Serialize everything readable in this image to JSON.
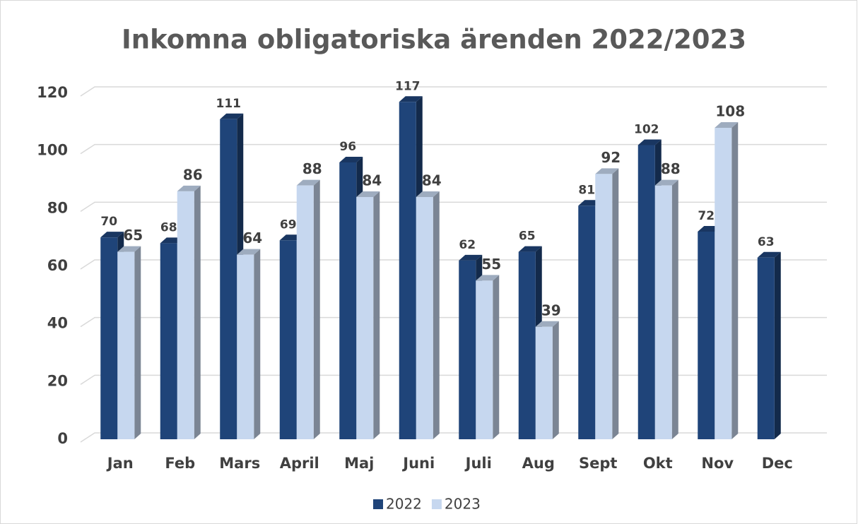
{
  "chart_data": {
    "type": "bar3d",
    "title": "Inkomna obligatoriska ärenden 2022/2023",
    "categories": [
      "Jan",
      "Feb",
      "Mars",
      "April",
      "Maj",
      "Juni",
      "Juli",
      "Aug",
      "Sept",
      "Okt",
      "Nov",
      "Dec"
    ],
    "series": [
      {
        "name": "2022",
        "color": "#1f4479",
        "values": [
          70,
          68,
          111,
          69,
          96,
          117,
          62,
          65,
          81,
          102,
          72,
          63
        ]
      },
      {
        "name": "2023",
        "color": "#c6d7ef",
        "values": [
          65,
          86,
          64,
          88,
          84,
          84,
          55,
          39,
          92,
          88,
          108,
          null
        ]
      }
    ],
    "ylim": [
      0,
      120
    ],
    "yticks": [
      0,
      20,
      40,
      60,
      80,
      100,
      120
    ],
    "grid": true,
    "legend": "bottom"
  }
}
